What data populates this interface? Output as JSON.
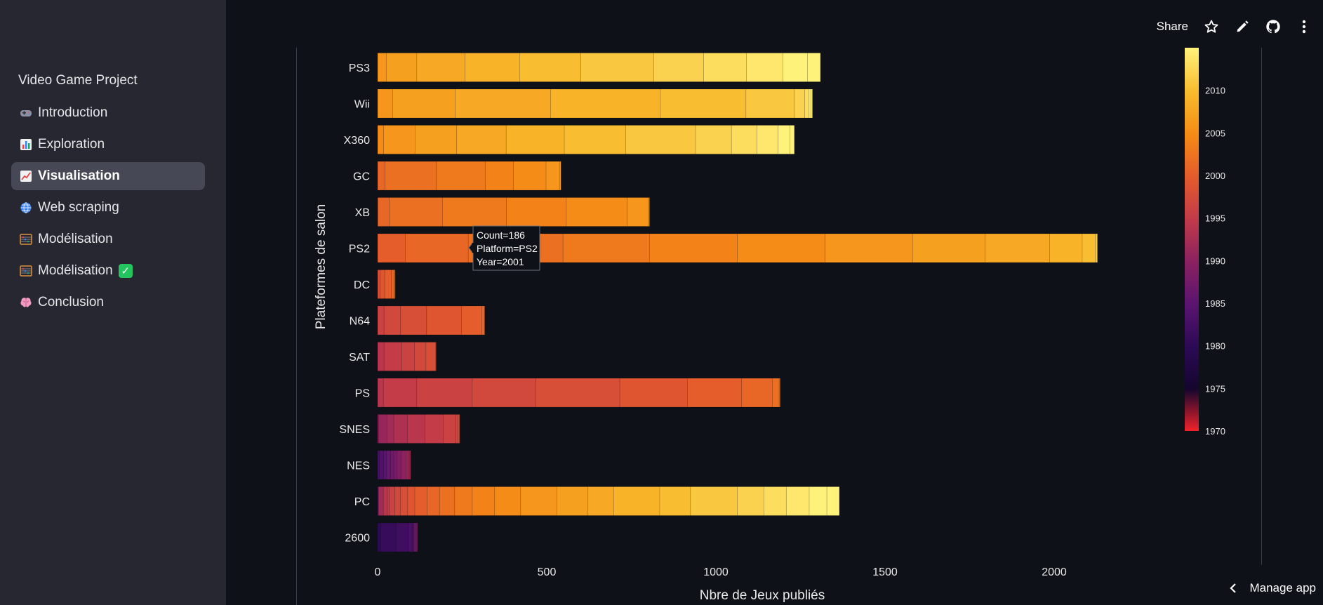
{
  "app": {
    "title": "Video Game Project"
  },
  "sidebar": {
    "items": [
      {
        "label": "Introduction",
        "icon": "game-controller-icon"
      },
      {
        "label": "Exploration",
        "icon": "bar-chart-icon"
      },
      {
        "label": "Visualisation",
        "icon": "line-chart-icon",
        "active": true
      },
      {
        "label": "Web scraping",
        "icon": "globe-icon"
      },
      {
        "label": "Modélisation",
        "icon": "abacus-icon"
      },
      {
        "label": "Modélisation",
        "icon": "abacus-icon",
        "badge": "check-mark-icon"
      },
      {
        "label": "Conclusion",
        "icon": "brain-icon"
      }
    ]
  },
  "toolbar": {
    "share_label": "Share",
    "icons": [
      "star-icon",
      "edit-pencil-icon",
      "github-icon",
      "more-vertical-icon"
    ]
  },
  "footer": {
    "manage_app_label": "Manage app"
  },
  "colors": {
    "background": "#0e1117",
    "sidebar": "#262730",
    "active_item": "#464855"
  },
  "chart_data": {
    "type": "bar",
    "orientation": "horizontal",
    "stacked": true,
    "xlabel": "Nbre de Jeux publiés",
    "ylabel": "Plateformes de salon",
    "xlim": [
      0,
      2350
    ],
    "xticks": [
      0,
      500,
      1000,
      1500,
      2000
    ],
    "color_scale": "inferno",
    "colorbar": {
      "range": [
        1970,
        2015
      ],
      "ticks": [
        1970,
        1975,
        1980,
        1985,
        1990,
        1995,
        2000,
        2005,
        2010
      ]
    },
    "tooltip": {
      "lines": [
        "Count=186",
        "Platform=PS2",
        "Year=2001"
      ],
      "platform": "PS2",
      "year": 2001
    },
    "categories": [
      "PS3",
      "Wii",
      "X360",
      "GC",
      "XB",
      "PS2",
      "DC",
      "N64",
      "SAT",
      "PS",
      "SNES",
      "NES",
      "PC",
      "2600"
    ],
    "series": [
      {
        "platform": "PS3",
        "segments": [
          {
            "year": 2006,
            "count": 26
          },
          {
            "year": 2007,
            "count": 90
          },
          {
            "year": 2008,
            "count": 142
          },
          {
            "year": 2009,
            "count": 162
          },
          {
            "year": 2010,
            "count": 181
          },
          {
            "year": 2011,
            "count": 215
          },
          {
            "year": 2012,
            "count": 148
          },
          {
            "year": 2013,
            "count": 126
          },
          {
            "year": 2014,
            "count": 108
          },
          {
            "year": 2015,
            "count": 73
          },
          {
            "year": 2016,
            "count": 38
          }
        ]
      },
      {
        "platform": "Wii",
        "segments": [
          {
            "year": 2006,
            "count": 44
          },
          {
            "year": 2007,
            "count": 185
          },
          {
            "year": 2008,
            "count": 282
          },
          {
            "year": 2009,
            "count": 325
          },
          {
            "year": 2010,
            "count": 253
          },
          {
            "year": 2011,
            "count": 143
          },
          {
            "year": 2012,
            "count": 31
          },
          {
            "year": 2013,
            "count": 12
          },
          {
            "year": 2014,
            "count": 6
          },
          {
            "year": 2015,
            "count": 4
          },
          {
            "year": 2016,
            "count": 1
          }
        ]
      },
      {
        "platform": "X360",
        "segments": [
          {
            "year": 2005,
            "count": 18
          },
          {
            "year": 2006,
            "count": 93
          },
          {
            "year": 2007,
            "count": 123
          },
          {
            "year": 2008,
            "count": 146
          },
          {
            "year": 2009,
            "count": 172
          },
          {
            "year": 2010,
            "count": 182
          },
          {
            "year": 2011,
            "count": 206
          },
          {
            "year": 2012,
            "count": 106
          },
          {
            "year": 2013,
            "count": 75
          },
          {
            "year": 2014,
            "count": 63
          },
          {
            "year": 2015,
            "count": 35
          },
          {
            "year": 2016,
            "count": 13
          }
        ]
      },
      {
        "platform": "GC",
        "segments": [
          {
            "year": 2001,
            "count": 22
          },
          {
            "year": 2002,
            "count": 152
          },
          {
            "year": 2003,
            "count": 144
          },
          {
            "year": 2004,
            "count": 83
          },
          {
            "year": 2005,
            "count": 97
          },
          {
            "year": 2006,
            "count": 40
          },
          {
            "year": 2007,
            "count": 4
          }
        ]
      },
      {
        "platform": "XB",
        "segments": [
          {
            "year": 2000,
            "count": 1
          },
          {
            "year": 2001,
            "count": 33
          },
          {
            "year": 2002,
            "count": 158
          },
          {
            "year": 2003,
            "count": 189
          },
          {
            "year": 2004,
            "count": 177
          },
          {
            "year": 2005,
            "count": 180
          },
          {
            "year": 2006,
            "count": 62
          },
          {
            "year": 2007,
            "count": 3
          },
          {
            "year": 2008,
            "count": 1
          }
        ]
      },
      {
        "platform": "PS2",
        "segments": [
          {
            "year": 2000,
            "count": 82
          },
          {
            "year": 2001,
            "count": 186
          },
          {
            "year": 2002,
            "count": 280
          },
          {
            "year": 2003,
            "count": 256
          },
          {
            "year": 2004,
            "count": 259
          },
          {
            "year": 2005,
            "count": 260
          },
          {
            "year": 2006,
            "count": 259
          },
          {
            "year": 2007,
            "count": 214
          },
          {
            "year": 2008,
            "count": 191
          },
          {
            "year": 2009,
            "count": 96
          },
          {
            "year": 2010,
            "count": 38
          },
          {
            "year": 2011,
            "count": 7
          }
        ]
      },
      {
        "platform": "DC",
        "segments": [
          {
            "year": 1998,
            "count": 7
          },
          {
            "year": 1999,
            "count": 14
          },
          {
            "year": 2000,
            "count": 20
          },
          {
            "year": 2001,
            "count": 8
          },
          {
            "year": 2002,
            "count": 1
          },
          {
            "year": 2007,
            "count": 1
          },
          {
            "year": 2008,
            "count": 1
          }
        ]
      },
      {
        "platform": "N64",
        "segments": [
          {
            "year": 1996,
            "count": 19
          },
          {
            "year": 1997,
            "count": 49
          },
          {
            "year": 1998,
            "count": 77
          },
          {
            "year": 1999,
            "count": 103
          },
          {
            "year": 2000,
            "count": 60
          },
          {
            "year": 2001,
            "count": 8
          },
          {
            "year": 2002,
            "count": 1
          }
        ]
      },
      {
        "platform": "SAT",
        "segments": [
          {
            "year": 1994,
            "count": 19
          },
          {
            "year": 1995,
            "count": 52
          },
          {
            "year": 1996,
            "count": 38
          },
          {
            "year": 1997,
            "count": 34
          },
          {
            "year": 1998,
            "count": 29
          },
          {
            "year": 1999,
            "count": 1
          }
        ]
      },
      {
        "platform": "PS",
        "segments": [
          {
            "year": 1994,
            "count": 17
          },
          {
            "year": 1995,
            "count": 99
          },
          {
            "year": 1996,
            "count": 164
          },
          {
            "year": 1997,
            "count": 188
          },
          {
            "year": 1998,
            "count": 248
          },
          {
            "year": 1999,
            "count": 200
          },
          {
            "year": 2000,
            "count": 160
          },
          {
            "year": 2001,
            "count": 91
          },
          {
            "year": 2002,
            "count": 20
          },
          {
            "year": 2003,
            "count": 3
          }
        ]
      },
      {
        "platform": "SNES",
        "segments": [
          {
            "year": 1990,
            "count": 4
          },
          {
            "year": 1991,
            "count": 24
          },
          {
            "year": 1992,
            "count": 20
          },
          {
            "year": 1993,
            "count": 40
          },
          {
            "year": 1994,
            "count": 52
          },
          {
            "year": 1995,
            "count": 54
          },
          {
            "year": 1996,
            "count": 37
          },
          {
            "year": 1997,
            "count": 7
          },
          {
            "year": 1998,
            "count": 4
          },
          {
            "year": 1999,
            "count": 1
          }
        ]
      },
      {
        "platform": "NES",
        "segments": [
          {
            "year": 1983,
            "count": 6
          },
          {
            "year": 1984,
            "count": 12
          },
          {
            "year": 1985,
            "count": 8
          },
          {
            "year": 1986,
            "count": 12
          },
          {
            "year": 1987,
            "count": 10
          },
          {
            "year": 1988,
            "count": 10
          },
          {
            "year": 1989,
            "count": 11
          },
          {
            "year": 1990,
            "count": 15
          },
          {
            "year": 1991,
            "count": 7
          },
          {
            "year": 1992,
            "count": 3
          },
          {
            "year": 1993,
            "count": 3
          },
          {
            "year": 1994,
            "count": 1
          }
        ]
      },
      {
        "platform": "PC",
        "segments": [
          {
            "year": 1985,
            "count": 1
          },
          {
            "year": 1988,
            "count": 1
          },
          {
            "year": 1991,
            "count": 1
          },
          {
            "year": 1992,
            "count": 14
          },
          {
            "year": 1994,
            "count": 12
          },
          {
            "year": 1995,
            "count": 6
          },
          {
            "year": 1996,
            "count": 16
          },
          {
            "year": 1997,
            "count": 16
          },
          {
            "year": 1998,
            "count": 22
          },
          {
            "year": 1999,
            "count": 21
          },
          {
            "year": 2000,
            "count": 36
          },
          {
            "year": 2001,
            "count": 37
          },
          {
            "year": 2002,
            "count": 45
          },
          {
            "year": 2003,
            "count": 52
          },
          {
            "year": 2004,
            "count": 65
          },
          {
            "year": 2005,
            "count": 78
          },
          {
            "year": 2006,
            "count": 107
          },
          {
            "year": 2007,
            "count": 92
          },
          {
            "year": 2008,
            "count": 76
          },
          {
            "year": 2009,
            "count": 136
          },
          {
            "year": 2010,
            "count": 91
          },
          {
            "year": 2011,
            "count": 138
          },
          {
            "year": 2012,
            "count": 79
          },
          {
            "year": 2013,
            "count": 66
          },
          {
            "year": 2014,
            "count": 68
          },
          {
            "year": 2015,
            "count": 52
          },
          {
            "year": 2016,
            "count": 37
          }
        ]
      },
      {
        "platform": "2600",
        "segments": [
          {
            "year": 1980,
            "count": 9
          },
          {
            "year": 1981,
            "count": 46
          },
          {
            "year": 1982,
            "count": 36
          },
          {
            "year": 1983,
            "count": 11
          },
          {
            "year": 1984,
            "count": 3
          },
          {
            "year": 1985,
            "count": 1
          },
          {
            "year": 1986,
            "count": 2
          },
          {
            "year": 1987,
            "count": 6
          },
          {
            "year": 1988,
            "count": 2
          },
          {
            "year": 1989,
            "count": 2
          }
        ]
      }
    ]
  }
}
